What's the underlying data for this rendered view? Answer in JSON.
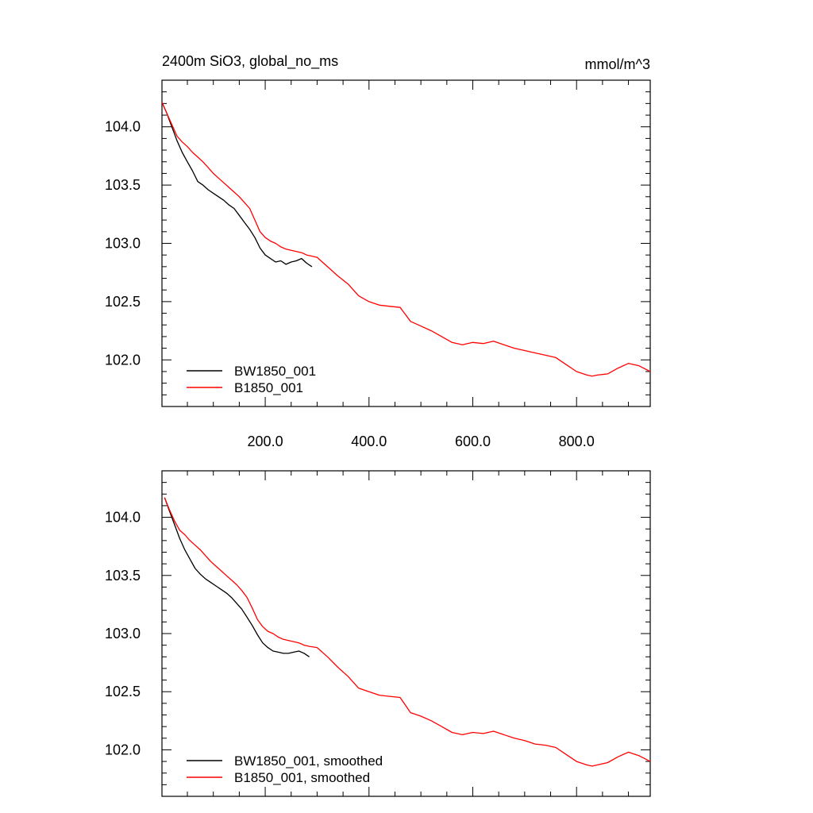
{
  "chart_data": [
    {
      "type": "line",
      "title": "2400m SiO3, global_no_ms",
      "units": "mmol/m^3",
      "xlim": [
        1,
        942
      ],
      "ylim": [
        101.6,
        104.4
      ],
      "xticks": [
        200,
        400,
        600,
        800
      ],
      "xtick_labels": [
        "200.0",
        "400.0",
        "600.0",
        "800.0"
      ],
      "yticks": [
        102.0,
        102.5,
        103.0,
        103.5,
        104.0
      ],
      "ytick_labels": [
        "102.0",
        "102.5",
        "103.0",
        "103.5",
        "104.0"
      ],
      "legend": "bottom-left",
      "series": [
        {
          "name": "BW1850_001",
          "color": "#000000",
          "x": [
            1,
            10,
            20,
            30,
            40,
            50,
            60,
            70,
            80,
            90,
            100,
            110,
            120,
            130,
            140,
            150,
            160,
            170,
            180,
            190,
            200,
            210,
            220,
            230,
            240,
            250,
            260,
            270,
            280,
            290
          ],
          "y": [
            104.21,
            104.12,
            104.0,
            103.88,
            103.78,
            103.7,
            103.62,
            103.53,
            103.5,
            103.46,
            103.43,
            103.4,
            103.37,
            103.33,
            103.3,
            103.24,
            103.18,
            103.12,
            103.05,
            102.96,
            102.9,
            102.87,
            102.84,
            102.85,
            102.82,
            102.84,
            102.85,
            102.87,
            102.83,
            102.8
          ]
        },
        {
          "name": "B1850_001",
          "color": "#ff0000",
          "x": [
            1,
            10,
            20,
            30,
            40,
            50,
            60,
            70,
            80,
            90,
            100,
            110,
            120,
            130,
            140,
            150,
            160,
            170,
            180,
            190,
            200,
            210,
            220,
            230,
            240,
            250,
            260,
            270,
            280,
            290,
            300,
            320,
            340,
            360,
            380,
            400,
            420,
            440,
            460,
            480,
            500,
            520,
            540,
            560,
            580,
            600,
            620,
            640,
            660,
            680,
            700,
            720,
            740,
            760,
            780,
            800,
            820,
            830,
            840,
            860,
            880,
            900,
            920,
            942
          ],
          "y": [
            104.21,
            104.12,
            104.02,
            103.92,
            103.87,
            103.83,
            103.78,
            103.74,
            103.7,
            103.65,
            103.6,
            103.56,
            103.52,
            103.48,
            103.44,
            103.4,
            103.35,
            103.3,
            103.2,
            103.1,
            103.05,
            103.02,
            103.0,
            102.97,
            102.95,
            102.94,
            102.93,
            102.92,
            102.9,
            102.89,
            102.88,
            102.8,
            102.72,
            102.65,
            102.55,
            102.5,
            102.47,
            102.46,
            102.45,
            102.33,
            102.29,
            102.25,
            102.2,
            102.15,
            102.13,
            102.15,
            102.14,
            102.16,
            102.13,
            102.1,
            102.08,
            102.06,
            102.04,
            102.02,
            101.96,
            101.9,
            101.87,
            101.86,
            101.87,
            101.88,
            101.93,
            101.97,
            101.95,
            101.9
          ]
        }
      ]
    },
    {
      "type": "line",
      "xlim": [
        1,
        942
      ],
      "ylim": [
        101.6,
        104.4
      ],
      "xticks": [
        200,
        400,
        600,
        800
      ],
      "yticks": [
        102.0,
        102.5,
        103.0,
        103.5,
        104.0
      ],
      "ytick_labels": [
        "102.0",
        "102.5",
        "103.0",
        "103.5",
        "104.0"
      ],
      "legend": "bottom-left",
      "series": [
        {
          "name": "BW1850_001, smoothed",
          "color": "#000000",
          "x": [
            6,
            15,
            25,
            35,
            45,
            55,
            65,
            75,
            85,
            95,
            105,
            115,
            125,
            135,
            145,
            155,
            165,
            175,
            185,
            195,
            205,
            215,
            225,
            235,
            245,
            255,
            265,
            275,
            285
          ],
          "y": [
            104.17,
            104.06,
            103.94,
            103.82,
            103.72,
            103.64,
            103.56,
            103.51,
            103.47,
            103.44,
            103.41,
            103.38,
            103.35,
            103.31,
            103.26,
            103.21,
            103.14,
            103.07,
            102.99,
            102.92,
            102.88,
            102.85,
            102.84,
            102.83,
            102.83,
            102.84,
            102.85,
            102.83,
            102.8
          ]
        },
        {
          "name": "B1850_001, smoothed",
          "color": "#ff0000",
          "x": [
            6,
            15,
            25,
            35,
            45,
            55,
            65,
            75,
            85,
            95,
            105,
            115,
            125,
            135,
            145,
            155,
            165,
            175,
            185,
            195,
            205,
            215,
            225,
            235,
            245,
            255,
            265,
            275,
            285,
            300,
            320,
            340,
            360,
            380,
            400,
            420,
            440,
            460,
            480,
            500,
            520,
            540,
            560,
            580,
            600,
            620,
            640,
            660,
            680,
            700,
            720,
            740,
            760,
            780,
            800,
            820,
            830,
            840,
            860,
            880,
            900,
            920,
            942
          ],
          "y": [
            104.17,
            104.07,
            103.97,
            103.89,
            103.85,
            103.8,
            103.76,
            103.72,
            103.67,
            103.62,
            103.58,
            103.54,
            103.5,
            103.46,
            103.42,
            103.37,
            103.31,
            103.22,
            103.12,
            103.06,
            103.02,
            103.0,
            102.97,
            102.95,
            102.94,
            102.93,
            102.92,
            102.9,
            102.89,
            102.88,
            102.8,
            102.71,
            102.63,
            102.53,
            102.5,
            102.47,
            102.46,
            102.45,
            102.32,
            102.29,
            102.25,
            102.2,
            102.15,
            102.13,
            102.15,
            102.14,
            102.16,
            102.13,
            102.1,
            102.08,
            102.05,
            102.04,
            102.02,
            101.96,
            101.9,
            101.87,
            101.86,
            101.87,
            101.89,
            101.94,
            101.98,
            101.95,
            101.9
          ]
        }
      ]
    }
  ]
}
